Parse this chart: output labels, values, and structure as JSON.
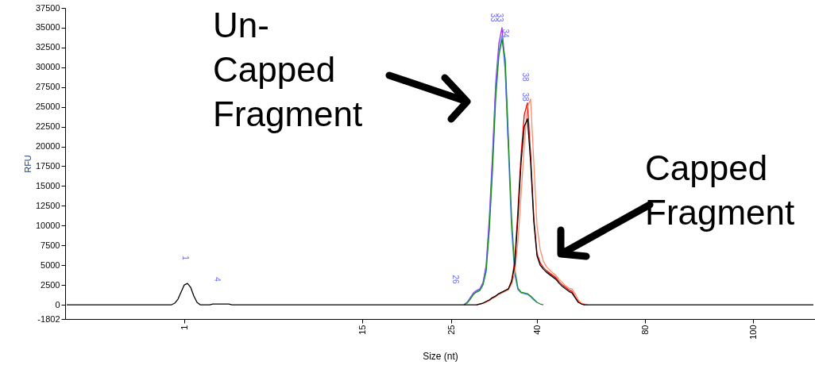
{
  "chart_data": {
    "type": "line",
    "xlabel": "Size (nt)",
    "ylabel": "RFU",
    "categories": [
      null,
      null,
      null,
      null,
      null,
      null,
      null,
      null,
      null,
      null,
      null,
      null,
      null,
      null,
      null,
      null,
      null,
      null,
      null,
      null,
      null,
      null,
      null,
      null,
      null,
      null,
      null,
      null,
      null,
      null,
      null,
      null,
      null,
      null,
      null,
      null,
      null,
      "1",
      null,
      null,
      null,
      null,
      null,
      null,
      null,
      null,
      null,
      null,
      null,
      null,
      null,
      null,
      null,
      null,
      null,
      null,
      null,
      null,
      null,
      null,
      null,
      null,
      null,
      null,
      null,
      null,
      null,
      null,
      null,
      null,
      null,
      null,
      null,
      null,
      null,
      null,
      null,
      null,
      null,
      null,
      null,
      null,
      null,
      null,
      null,
      null,
      null,
      null,
      null,
      null,
      null,
      null,
      null,
      "15",
      null,
      null,
      null,
      null,
      null,
      null,
      null,
      null,
      null,
      null,
      null,
      null,
      null,
      null,
      null,
      null,
      null,
      null,
      null,
      null,
      null,
      null,
      null,
      null,
      null,
      null,
      null,
      "25",
      null,
      null,
      null,
      null,
      null,
      null,
      null,
      null,
      null,
      null,
      null,
      null,
      null,
      null,
      null,
      null,
      null,
      null,
      null,
      null,
      null,
      null,
      null,
      null,
      null,
      null,
      "40",
      null,
      null,
      null,
      null,
      null,
      null,
      null,
      null,
      null,
      null,
      null,
      null,
      null,
      null,
      null,
      null,
      null,
      null,
      null,
      null,
      null,
      null,
      null,
      null,
      null,
      null,
      null,
      null,
      null,
      null,
      null,
      null,
      null,
      "80",
      null,
      null,
      null,
      null,
      null,
      null,
      null,
      null,
      null,
      null,
      null,
      null,
      null,
      null,
      null,
      null,
      null,
      null,
      null,
      null,
      null,
      null,
      null,
      null,
      null,
      null,
      null,
      null,
      null,
      null,
      null,
      null,
      null,
      "100",
      null,
      null,
      null,
      null,
      null,
      null,
      null,
      null,
      null,
      null,
      null,
      null,
      null,
      null,
      null,
      null,
      null,
      null,
      null
    ],
    "ylim": [
      -1802,
      37500
    ],
    "yticks": [
      -1802,
      0,
      2500,
      5000,
      7500,
      10000,
      12500,
      15000,
      17500,
      20000,
      22500,
      25000,
      27500,
      30000,
      32500,
      35000,
      37500
    ],
    "grid": false,
    "marker": "none",
    "line_style": "solid",
    "series": [
      {
        "color": "#9b30ff",
        "values": [
          null,
          null,
          null,
          null,
          null,
          null,
          null,
          null,
          null,
          null,
          null,
          null,
          null,
          null,
          null,
          null,
          null,
          null,
          null,
          null,
          null,
          null,
          null,
          null,
          null,
          null,
          null,
          null,
          null,
          null,
          null,
          null,
          null,
          null,
          null,
          null,
          null,
          null,
          null,
          null,
          null,
          null,
          null,
          null,
          null,
          null,
          null,
          null,
          null,
          null,
          null,
          null,
          null,
          null,
          null,
          null,
          null,
          null,
          null,
          null,
          null,
          null,
          null,
          null,
          null,
          null,
          null,
          null,
          null,
          null,
          null,
          null,
          null,
          null,
          null,
          null,
          null,
          null,
          null,
          null,
          null,
          null,
          null,
          null,
          null,
          null,
          null,
          null,
          null,
          null,
          null,
          null,
          null,
          null,
          null,
          null,
          null,
          null,
          null,
          null,
          null,
          null,
          null,
          null,
          null,
          null,
          null,
          null,
          null,
          null,
          null,
          null,
          null,
          null,
          null,
          null,
          null,
          null,
          null,
          null,
          null,
          null,
          null,
          null,
          null,
          0,
          300,
          900,
          1500,
          1800,
          2000,
          2800,
          5000,
          11000,
          19000,
          28000,
          33000,
          35000,
          30000,
          20000,
          null,
          null,
          null,
          null,
          null,
          null,
          null,
          null,
          null,
          null,
          null,
          null,
          null,
          null,
          null,
          null,
          null,
          null,
          null,
          null,
          null,
          null,
          null,
          null,
          null,
          null,
          null,
          null,
          null,
          null,
          null,
          null,
          null,
          null,
          null,
          null,
          null,
          null,
          null,
          null,
          null,
          null,
          null,
          null,
          null,
          null,
          null,
          null,
          null,
          null,
          null,
          null,
          null,
          null,
          null,
          null,
          null,
          null,
          null,
          null,
          null,
          null,
          null,
          null,
          null,
          null,
          null,
          null,
          null,
          null,
          null,
          null,
          null,
          null,
          null,
          null,
          null,
          null,
          null,
          null,
          null,
          null,
          null,
          null,
          null,
          null,
          null,
          null,
          null,
          null,
          null,
          null,
          null,
          null,
          null,
          null
        ]
      },
      {
        "color": "#4f8fff",
        "values": [
          null,
          null,
          null,
          null,
          null,
          null,
          null,
          null,
          null,
          null,
          null,
          null,
          null,
          null,
          null,
          null,
          null,
          null,
          null,
          null,
          null,
          null,
          null,
          null,
          null,
          null,
          null,
          null,
          null,
          null,
          null,
          null,
          null,
          null,
          null,
          null,
          null,
          null,
          null,
          null,
          null,
          null,
          null,
          null,
          null,
          null,
          null,
          null,
          null,
          null,
          null,
          null,
          null,
          null,
          null,
          null,
          null,
          null,
          null,
          null,
          null,
          null,
          null,
          null,
          null,
          null,
          null,
          null,
          null,
          null,
          null,
          null,
          null,
          null,
          null,
          null,
          null,
          null,
          null,
          null,
          null,
          null,
          null,
          null,
          null,
          null,
          null,
          null,
          null,
          null,
          null,
          null,
          null,
          null,
          null,
          null,
          null,
          null,
          null,
          null,
          null,
          null,
          null,
          null,
          null,
          null,
          null,
          null,
          null,
          null,
          null,
          null,
          null,
          null,
          null,
          null,
          null,
          null,
          null,
          null,
          null,
          null,
          null,
          null,
          null,
          0,
          300,
          800,
          1400,
          1700,
          1900,
          2600,
          4600,
          10000,
          18000,
          27000,
          32000,
          34000,
          29500,
          19500,
          9500,
          3800,
          1900,
          1500,
          1400,
          1300,
          1000,
          600,
          300,
          null,
          null,
          null,
          null,
          null,
          null,
          null,
          null,
          null,
          null,
          null,
          null,
          null,
          null,
          null,
          null,
          null,
          null,
          null,
          null,
          null,
          null,
          null,
          null,
          null,
          null,
          null,
          null,
          null,
          null,
          null,
          null,
          null,
          null,
          null,
          null,
          null,
          null,
          null,
          null,
          null,
          null,
          null,
          null,
          null,
          null,
          null,
          null,
          null,
          null,
          null,
          null,
          null,
          null,
          null,
          null,
          null,
          null,
          null,
          null,
          null,
          null,
          null,
          null,
          null,
          null,
          null,
          null,
          null,
          null,
          null,
          null,
          null,
          null,
          null,
          null,
          null,
          null,
          null,
          null,
          null,
          null,
          null,
          null,
          null,
          null,
          null
        ]
      },
      {
        "color": "#1a8a1a",
        "values": [
          null,
          null,
          null,
          null,
          null,
          null,
          null,
          null,
          null,
          null,
          null,
          null,
          null,
          null,
          null,
          null,
          null,
          null,
          null,
          null,
          null,
          null,
          null,
          null,
          null,
          null,
          null,
          null,
          null,
          null,
          null,
          null,
          null,
          null,
          null,
          null,
          null,
          null,
          null,
          null,
          null,
          null,
          null,
          null,
          null,
          null,
          null,
          null,
          null,
          null,
          null,
          null,
          null,
          null,
          null,
          null,
          null,
          null,
          null,
          null,
          null,
          null,
          null,
          null,
          null,
          null,
          null,
          null,
          null,
          null,
          null,
          null,
          null,
          null,
          null,
          null,
          null,
          null,
          null,
          null,
          null,
          null,
          null,
          null,
          null,
          null,
          null,
          null,
          null,
          null,
          null,
          null,
          null,
          null,
          null,
          null,
          null,
          null,
          null,
          null,
          null,
          null,
          null,
          null,
          null,
          null,
          null,
          null,
          null,
          null,
          null,
          null,
          null,
          null,
          null,
          null,
          null,
          null,
          null,
          null,
          null,
          null,
          null,
          null,
          null,
          0,
          200,
          700,
          1300,
          1600,
          1800,
          2500,
          4200,
          9500,
          17000,
          26000,
          31500,
          33500,
          31000,
          21000,
          11000,
          4500,
          2100,
          1600,
          1500,
          1400,
          1100,
          700,
          300,
          100,
          0,
          null,
          null,
          null,
          null,
          null,
          null,
          null,
          null,
          null,
          null,
          null,
          null,
          null,
          null,
          null,
          null,
          null,
          null,
          null,
          null,
          null,
          null,
          null,
          null,
          null,
          null,
          null,
          null,
          null,
          null,
          null,
          null,
          null,
          null,
          null,
          null,
          null,
          null,
          null,
          null,
          null,
          null,
          null,
          null,
          null,
          null,
          null,
          null,
          null,
          null,
          null,
          null,
          null,
          null,
          null,
          null,
          null,
          null,
          null,
          null,
          null,
          null,
          null,
          null,
          null,
          null,
          null,
          null,
          null,
          null,
          null,
          null,
          null,
          null,
          null,
          null,
          null,
          null,
          null,
          null,
          null,
          null,
          null,
          null,
          null
        ]
      },
      {
        "color": "#ff0000",
        "values": [
          null,
          null,
          null,
          null,
          null,
          null,
          null,
          null,
          null,
          null,
          null,
          null,
          null,
          null,
          null,
          null,
          null,
          null,
          null,
          null,
          null,
          null,
          null,
          null,
          null,
          null,
          null,
          null,
          null,
          null,
          null,
          null,
          null,
          null,
          null,
          null,
          null,
          null,
          null,
          null,
          null,
          null,
          null,
          null,
          null,
          null,
          null,
          null,
          null,
          null,
          null,
          null,
          null,
          null,
          null,
          null,
          null,
          null,
          null,
          null,
          null,
          null,
          null,
          null,
          null,
          null,
          null,
          null,
          null,
          null,
          null,
          null,
          null,
          null,
          null,
          null,
          null,
          null,
          null,
          null,
          null,
          null,
          null,
          null,
          null,
          null,
          null,
          null,
          null,
          null,
          null,
          null,
          null,
          null,
          null,
          null,
          null,
          null,
          null,
          null,
          null,
          null,
          null,
          null,
          null,
          null,
          null,
          null,
          null,
          null,
          null,
          null,
          null,
          null,
          null,
          null,
          null,
          null,
          null,
          null,
          null,
          null,
          null,
          null,
          null,
          null,
          null,
          null,
          null,
          0,
          100,
          200,
          400,
          600,
          900,
          1100,
          1400,
          1600,
          1800,
          2000,
          3000,
          5500,
          12000,
          19000,
          24000,
          25500,
          19000,
          11000,
          6500,
          5300,
          4700,
          4300,
          4000,
          3700,
          3400,
          2900,
          2500,
          2200,
          1900,
          1700,
          1000,
          400,
          100,
          0,
          null,
          null,
          null,
          null,
          null,
          null,
          null,
          null,
          null,
          null,
          null,
          null,
          null,
          null,
          null,
          null,
          null,
          null,
          null,
          null,
          null,
          null,
          null,
          null,
          null,
          null,
          null,
          null,
          null,
          null,
          null,
          null,
          null,
          null,
          null,
          null,
          null,
          null,
          null,
          null,
          null,
          null,
          null,
          null,
          null,
          null,
          null,
          null,
          null,
          null,
          null,
          null,
          null,
          null,
          null,
          null,
          null,
          null,
          null,
          null,
          null,
          null,
          null,
          null,
          null,
          null,
          null,
          null,
          null,
          null,
          null,
          null
        ]
      },
      {
        "color": "#ff8c69",
        "values": [
          null,
          null,
          null,
          null,
          null,
          null,
          null,
          null,
          null,
          null,
          null,
          null,
          null,
          null,
          null,
          null,
          null,
          null,
          null,
          null,
          null,
          null,
          null,
          null,
          null,
          null,
          null,
          null,
          null,
          null,
          null,
          null,
          null,
          null,
          null,
          null,
          null,
          null,
          null,
          null,
          null,
          null,
          null,
          null,
          null,
          null,
          null,
          null,
          null,
          null,
          null,
          null,
          null,
          null,
          null,
          null,
          null,
          null,
          null,
          null,
          null,
          null,
          null,
          null,
          null,
          null,
          null,
          null,
          null,
          null,
          null,
          null,
          null,
          null,
          null,
          null,
          null,
          null,
          null,
          null,
          null,
          null,
          null,
          null,
          null,
          null,
          null,
          null,
          null,
          null,
          null,
          null,
          null,
          null,
          null,
          null,
          null,
          null,
          null,
          null,
          null,
          null,
          null,
          null,
          null,
          null,
          null,
          null,
          null,
          null,
          null,
          null,
          null,
          null,
          null,
          null,
          null,
          null,
          null,
          null,
          null,
          null,
          null,
          null,
          null,
          null,
          null,
          null,
          null,
          0,
          100,
          200,
          300,
          500,
          800,
          1000,
          1300,
          1500,
          1700,
          1900,
          2600,
          4000,
          8000,
          14000,
          20000,
          25000,
          26000,
          18000,
          10000,
          7000,
          5500,
          4800,
          4400,
          4000,
          3700,
          3200,
          2800,
          2400,
          2100,
          2000,
          1400,
          600,
          200,
          100,
          0,
          null,
          null,
          null,
          null,
          null,
          null,
          null,
          null,
          null,
          null,
          null,
          null,
          null,
          null,
          null,
          null,
          null,
          null,
          null,
          null,
          null,
          null,
          null,
          null,
          null,
          null,
          null,
          null,
          null,
          null,
          null,
          null,
          null,
          null,
          null,
          null,
          null,
          null,
          null,
          null,
          null,
          null,
          null,
          null,
          null,
          null,
          null,
          null,
          null,
          null,
          null,
          null,
          null,
          null,
          null,
          null,
          null,
          null,
          null,
          null,
          null,
          null,
          null,
          null,
          null,
          null,
          null,
          null,
          null,
          null,
          null
        ]
      },
      {
        "color": "#000000",
        "values": [
          0,
          0,
          0,
          0,
          0,
          0,
          0,
          0,
          0,
          0,
          0,
          0,
          0,
          0,
          0,
          0,
          0,
          0,
          0,
          0,
          0,
          0,
          0,
          0,
          0,
          0,
          0,
          0,
          0,
          0,
          0,
          0,
          0,
          0,
          200,
          700,
          1600,
          2500,
          2700,
          2200,
          1100,
          300,
          0,
          0,
          0,
          0,
          100,
          100,
          100,
          100,
          100,
          100,
          0,
          0,
          0,
          0,
          0,
          0,
          0,
          0,
          0,
          0,
          0,
          0,
          0,
          0,
          0,
          0,
          0,
          0,
          0,
          0,
          0,
          0,
          0,
          0,
          0,
          0,
          0,
          0,
          0,
          0,
          0,
          0,
          0,
          0,
          0,
          0,
          0,
          0,
          0,
          0,
          0,
          0,
          0,
          0,
          0,
          0,
          0,
          0,
          0,
          0,
          0,
          0,
          0,
          0,
          0,
          0,
          0,
          0,
          0,
          0,
          0,
          0,
          0,
          0,
          0,
          0,
          0,
          0,
          0,
          0,
          0,
          0,
          0,
          0,
          0,
          0,
          0,
          0,
          100,
          200,
          400,
          600,
          900,
          1100,
          1400,
          1600,
          1800,
          2000,
          2900,
          5000,
          11000,
          18000,
          22500,
          23500,
          18000,
          10500,
          6200,
          5000,
          4500,
          4100,
          3800,
          3500,
          3200,
          2700,
          2300,
          2000,
          1700,
          1500,
          900,
          300,
          100,
          0,
          0,
          0,
          0,
          0,
          0,
          0,
          0,
          0,
          0,
          0,
          0,
          0,
          0,
          0,
          0,
          0,
          0,
          0,
          0,
          0,
          0,
          0,
          0,
          0,
          0,
          0,
          0,
          0,
          0,
          0,
          0,
          0,
          0,
          0,
          0,
          0,
          0,
          0,
          0,
          0,
          0,
          0,
          0,
          0,
          0,
          0,
          0,
          0,
          0,
          0,
          0,
          0,
          0,
          0,
          0,
          0,
          0,
          0,
          0,
          0,
          0,
          0,
          0,
          0,
          0,
          0,
          0,
          0,
          0,
          0,
          0,
          0
        ]
      }
    ],
    "annotations": [
      "1",
      "4",
      "26",
      "33",
      "33",
      "34",
      "38",
      "38",
      "Un-\nCapped\nFragment",
      "Capped\nFragment"
    ]
  }
}
